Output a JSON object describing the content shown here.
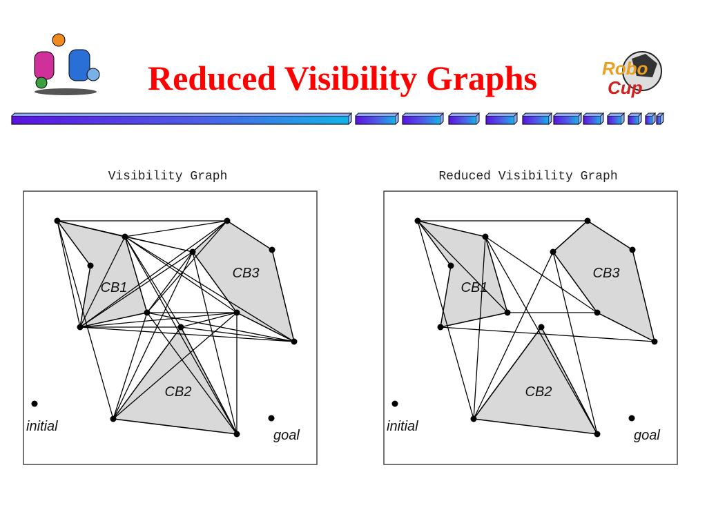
{
  "header": {
    "title": "Reduced Visibility Graphs",
    "logo": {
      "line1": "Robo",
      "line2": "Cup"
    }
  },
  "panels": [
    {
      "title": "Visibility Graph",
      "labels": {
        "cb1": "CB1",
        "cb2": "CB2",
        "cb3": "CB3",
        "start": "initial",
        "end": "goal"
      }
    },
    {
      "title": "Reduced Visibility Graph",
      "labels": {
        "cb1": "CB1",
        "cb2": "CB2",
        "cb3": "CB3",
        "start": "initial",
        "end": "goal"
      }
    }
  ]
}
